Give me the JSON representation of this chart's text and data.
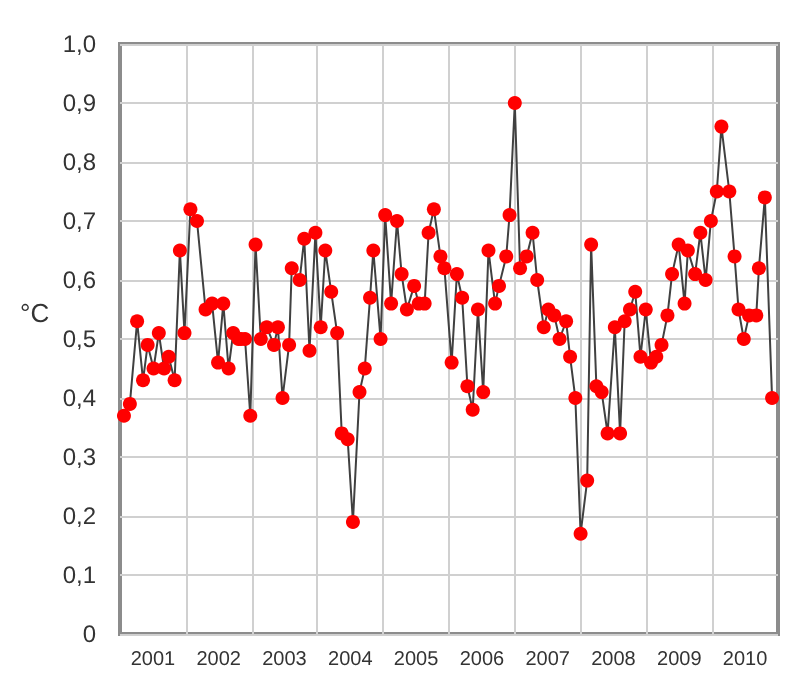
{
  "chart_data": {
    "type": "line",
    "ylabel": "°C",
    "marker": "circle",
    "line_style": "solid",
    "grid": true,
    "xlim": [
      2001,
      2011
    ],
    "xticks": [
      {
        "value": 2001.5,
        "label": "2001"
      },
      {
        "value": 2002,
        "label": null
      },
      {
        "value": 2002.5,
        "label": "2002"
      },
      {
        "value": 2003,
        "label": null
      },
      {
        "value": 2003.5,
        "label": "2003"
      },
      {
        "value": 2004,
        "label": null
      },
      {
        "value": 2004.5,
        "label": "2004"
      },
      {
        "value": 2005,
        "label": null
      },
      {
        "value": 2005.5,
        "label": "2005"
      },
      {
        "value": 2006,
        "label": null
      },
      {
        "value": 2006.5,
        "label": "2006"
      },
      {
        "value": 2007,
        "label": null
      },
      {
        "value": 2007.5,
        "label": "2007"
      },
      {
        "value": 2008,
        "label": null
      },
      {
        "value": 2008.5,
        "label": "2008"
      },
      {
        "value": 2009,
        "label": null
      },
      {
        "value": 2009.5,
        "label": "2009"
      },
      {
        "value": 2010,
        "label": null
      },
      {
        "value": 2010.5,
        "label": "2010"
      }
    ],
    "ylim": [
      0,
      1
    ],
    "yticks": [
      0,
      {
        "value": 0.1,
        "label": "0,1"
      },
      {
        "value": 0.2,
        "label": "0,2"
      },
      {
        "value": 0.3,
        "label": "0,3"
      },
      {
        "value": 0.4,
        "label": "0,4"
      },
      {
        "value": 0.5,
        "label": "0,5"
      },
      {
        "value": 0.6,
        "label": "0,6"
      },
      {
        "value": 0.7,
        "label": "0,7"
      },
      {
        "value": 0.8,
        "label": "0,8"
      },
      {
        "value": 0.9,
        "label": "0,9"
      },
      {
        "value": 1,
        "label": "1,0"
      }
    ],
    "series": [
      {
        "color": "#ff0000",
        "x": [
          2001.06,
          2001.15,
          2001.26,
          2001.35,
          2001.42,
          2001.51,
          2001.59,
          2001.67,
          2001.74,
          2001.83,
          2001.91,
          2001.98,
          2002.07,
          2002.17,
          2002.3,
          2002.4,
          2002.49,
          2002.57,
          2002.65,
          2002.72,
          2002.8,
          2002.84,
          2002.9,
          2002.98,
          2003.06,
          2003.14,
          2003.23,
          2003.34,
          2003.4,
          2003.47,
          2003.57,
          2003.61,
          2003.73,
          2003.8,
          2003.88,
          2003.97,
          2004.05,
          2004.12,
          2004.21,
          2004.3,
          2004.37,
          2004.46,
          2004.54,
          2004.64,
          2004.72,
          2004.8,
          2004.85,
          2004.96,
          2005.03,
          2005.12,
          2005.21,
          2005.28,
          2005.36,
          2005.47,
          2005.54,
          2005.63,
          2005.69,
          2005.77,
          2005.87,
          2005.93,
          2006.04,
          2006.12,
          2006.2,
          2006.28,
          2006.36,
          2006.44,
          2006.52,
          2006.6,
          2006.7,
          2006.76,
          2006.87,
          2006.92,
          2007.0,
          2007.08,
          2007.18,
          2007.27,
          2007.34,
          2007.44,
          2007.51,
          2007.6,
          2007.68,
          2007.78,
          2007.84,
          2007.92,
          2008.0,
          2008.1,
          2008.16,
          2008.24,
          2008.32,
          2008.41,
          2008.52,
          2008.6,
          2008.67,
          2008.75,
          2008.83,
          2008.91,
          2008.99,
          2009.07,
          2009.15,
          2009.23,
          2009.32,
          2009.39,
          2009.49,
          2009.58,
          2009.63,
          2009.74,
          2009.82,
          2009.9,
          2009.98,
          2010.07,
          2010.14,
          2010.26,
          2010.34,
          2010.4,
          2010.48,
          2010.56,
          2010.67,
          2010.71,
          2010.8,
          2010.91
        ],
        "values": [
          0.37,
          0.39,
          0.53,
          0.43,
          0.49,
          0.45,
          0.51,
          0.45,
          0.47,
          0.43,
          0.65,
          0.51,
          0.72,
          0.7,
          0.55,
          0.56,
          0.46,
          0.56,
          0.45,
          0.51,
          0.5,
          0.5,
          0.5,
          0.37,
          0.66,
          0.5,
          0.52,
          0.49,
          0.52,
          0.4,
          0.49,
          0.62,
          0.6,
          0.67,
          0.48,
          0.68,
          0.52,
          0.65,
          0.58,
          0.51,
          0.34,
          0.33,
          0.19,
          0.41,
          0.45,
          0.57,
          0.65,
          0.5,
          0.71,
          0.56,
          0.7,
          0.61,
          0.55,
          0.59,
          0.56,
          0.56,
          0.68,
          0.72,
          0.64,
          0.62,
          0.46,
          0.61,
          0.57,
          0.42,
          0.38,
          0.55,
          0.41,
          0.65,
          0.56,
          0.59,
          0.64,
          0.71,
          0.9,
          0.62,
          0.64,
          0.68,
          0.6,
          0.52,
          0.55,
          0.54,
          0.5,
          0.53,
          0.47,
          0.4,
          0.17,
          0.26,
          0.66,
          0.42,
          0.41,
          0.34,
          0.52,
          0.34,
          0.53,
          0.55,
          0.58,
          0.47,
          0.55,
          0.46,
          0.47,
          0.49,
          0.54,
          0.61,
          0.66,
          0.56,
          0.65,
          0.61,
          0.68,
          0.6,
          0.7,
          0.75,
          0.86,
          0.75,
          0.64,
          0.55,
          0.5,
          0.54,
          0.54,
          0.62,
          0.74,
          0.4
        ]
      }
    ]
  }
}
